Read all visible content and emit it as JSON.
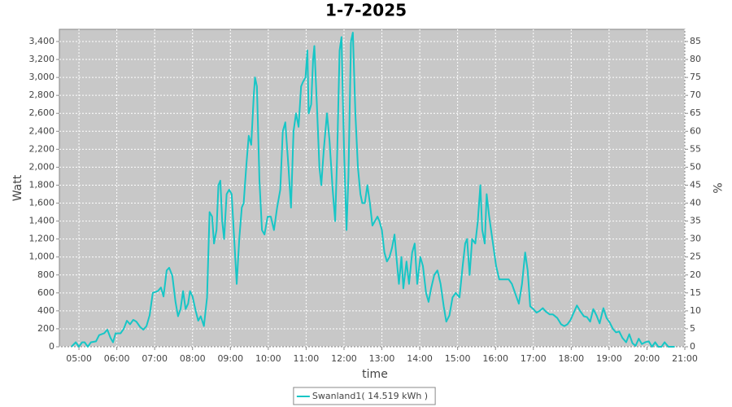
{
  "chart_data": {
    "type": "line",
    "title": "1-7-2025",
    "x_label": "time",
    "y_label": "Watt",
    "y2_label": "%",
    "xlim": [
      269,
      1260
    ],
    "xticks": [
      {
        "value": 300,
        "label": "05:00"
      },
      {
        "value": 360,
        "label": "06:00"
      },
      {
        "value": 420,
        "label": "07:00"
      },
      {
        "value": 480,
        "label": "08:00"
      },
      {
        "value": 540,
        "label": "09:00"
      },
      {
        "value": 600,
        "label": "10:00"
      },
      {
        "value": 660,
        "label": "11:00"
      },
      {
        "value": 720,
        "label": "12:00"
      },
      {
        "value": 780,
        "label": "13:00"
      },
      {
        "value": 840,
        "label": "14:00"
      },
      {
        "value": 900,
        "label": "15:00"
      },
      {
        "value": 960,
        "label": "16:00"
      },
      {
        "value": 1020,
        "label": "17:00"
      },
      {
        "value": 1080,
        "label": "18:00"
      },
      {
        "value": 1140,
        "label": "19:00"
      },
      {
        "value": 1200,
        "label": "20:00"
      },
      {
        "value": 1260,
        "label": "21:00"
      }
    ],
    "ylim": [
      0,
      3536
    ],
    "yticks": [
      0,
      200,
      400,
      600,
      800,
      {
        "value": 1000,
        "label": "1,000"
      },
      {
        "value": 1200,
        "label": "1,200"
      },
      {
        "value": 1400,
        "label": "1,400"
      },
      {
        "value": 1600,
        "label": "1,600"
      },
      {
        "value": 1800,
        "label": "1,800"
      },
      {
        "value": 2000,
        "label": "2,000"
      },
      {
        "value": 2200,
        "label": "2,200"
      },
      {
        "value": 2400,
        "label": "2,400"
      },
      {
        "value": 2600,
        "label": "2,600"
      },
      {
        "value": 2800,
        "label": "2,800"
      },
      {
        "value": 3000,
        "label": "3,000"
      },
      {
        "value": 3200,
        "label": "3,200"
      },
      {
        "value": 3400,
        "label": "3,400"
      }
    ],
    "y2lim": [
      0,
      88.4
    ],
    "y2ticks": [
      0,
      5,
      10,
      15,
      20,
      25,
      30,
      35,
      40,
      45,
      50,
      55,
      60,
      65,
      70,
      75,
      80,
      85
    ],
    "grid": true,
    "background": "#c8c8c8",
    "legend": "bottom",
    "x": [
      288,
      295,
      300,
      305,
      309,
      314,
      319,
      327,
      332,
      340,
      345,
      350,
      354,
      358,
      366,
      371,
      376,
      381,
      386,
      391,
      397,
      402,
      407,
      412,
      417,
      425,
      430,
      434,
      439,
      443,
      448,
      453,
      457,
      461,
      465,
      469,
      473,
      476,
      480,
      485,
      489,
      493,
      498,
      503,
      507,
      511,
      514,
      518,
      521,
      524,
      527,
      530,
      534,
      538,
      542,
      546,
      550,
      554,
      558,
      561,
      565,
      569,
      573,
      577,
      579,
      582,
      586,
      590,
      594,
      599,
      604,
      609,
      614,
      619,
      623,
      627,
      632,
      636,
      640,
      644,
      648,
      652,
      655,
      659,
      662,
      664,
      668,
      671,
      673,
      677,
      681,
      684,
      688,
      693,
      697,
      702,
      706,
      709,
      713,
      716,
      720,
      724,
      727,
      731,
      734,
      738,
      742,
      746,
      749,
      753,
      757,
      761,
      765,
      769,
      773,
      776,
      780,
      784,
      788,
      792,
      796,
      800,
      803,
      807,
      811,
      814,
      819,
      823,
      828,
      832,
      836,
      841,
      845,
      850,
      854,
      858,
      863,
      868,
      873,
      878,
      882,
      887,
      892,
      897,
      903,
      908,
      912,
      915,
      919,
      923,
      928,
      932,
      936,
      939,
      943,
      946,
      950,
      955,
      961,
      966,
      973,
      981,
      986,
      991,
      997,
      1002,
      1007,
      1011,
      1015,
      1020,
      1025,
      1030,
      1035,
      1040,
      1046,
      1051,
      1058,
      1064,
      1069,
      1074,
      1079,
      1084,
      1089,
      1094,
      1100,
      1105,
      1110,
      1115,
      1120,
      1125,
      1131,
      1136,
      1141,
      1146,
      1151,
      1156,
      1161,
      1167,
      1172,
      1177,
      1182,
      1187,
      1192,
      1197,
      1203,
      1208,
      1213,
      1218,
      1223,
      1228,
      1234,
      1244
    ],
    "series": [
      {
        "name": "Swanland1( 14.519 kWh )",
        "color": "#17c6c6",
        "values": [
          0,
          50,
          0,
          50,
          50,
          0,
          50,
          60,
          130,
          150,
          190,
          100,
          50,
          150,
          150,
          200,
          290,
          250,
          300,
          280,
          220,
          190,
          230,
          350,
          600,
          620,
          660,
          560,
          850,
          880,
          790,
          500,
          340,
          420,
          620,
          420,
          480,
          620,
          560,
          400,
          290,
          340,
          230,
          550,
          1500,
          1450,
          1150,
          1300,
          1800,
          1850,
          1400,
          1200,
          1700,
          1750,
          1700,
          1200,
          700,
          1200,
          1550,
          1600,
          2000,
          2350,
          2250,
          2800,
          3000,
          2900,
          1850,
          1300,
          1250,
          1450,
          1450,
          1300,
          1550,
          1750,
          2400,
          2500,
          2000,
          1550,
          2400,
          2600,
          2450,
          2900,
          2950,
          3000,
          3300,
          2600,
          2700,
          3200,
          3350,
          2700,
          2000,
          1800,
          2200,
          2600,
          2300,
          1750,
          1400,
          2100,
          3300,
          3450,
          2200,
          1300,
          1900,
          3400,
          3500,
          2600,
          2000,
          1700,
          1600,
          1600,
          1800,
          1600,
          1350,
          1400,
          1450,
          1400,
          1300,
          1050,
          950,
          1000,
          1100,
          1250,
          1000,
          700,
          1000,
          650,
          950,
          700,
          1050,
          1150,
          700,
          1000,
          900,
          600,
          500,
          650,
          800,
          850,
          700,
          450,
          280,
          350,
          550,
          600,
          550,
          900,
          1150,
          1200,
          800,
          1200,
          1150,
          1400,
          1800,
          1300,
          1150,
          1700,
          1450,
          1200,
          900,
          750,
          750,
          750,
          700,
          600,
          480,
          700,
          1050,
          850,
          450,
          420,
          380,
          400,
          430,
          390,
          360,
          360,
          320,
          250,
          230,
          250,
          300,
          380,
          460,
          400,
          340,
          330,
          280,
          420,
          350,
          260,
          430,
          320,
          270,
          200,
          160,
          170,
          100,
          50,
          140,
          40,
          10,
          90,
          30,
          50,
          60,
          0,
          50,
          0,
          0,
          50,
          0,
          0
        ]
      }
    ]
  }
}
